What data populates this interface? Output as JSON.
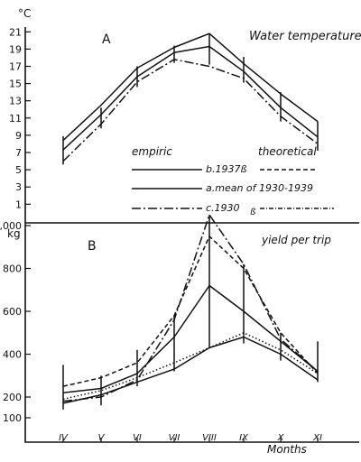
{
  "chart_data": [
    {
      "type": "line",
      "panel_label": "A",
      "title": "Water temperature",
      "unit_label": "°C",
      "y_ticks": [
        1,
        3,
        5,
        7,
        9,
        11,
        13,
        15,
        17,
        19,
        21
      ],
      "ylim": [
        0,
        22
      ],
      "grid": false,
      "legend": {
        "placement": "bottom-right",
        "header_left": "empiric",
        "header_right": "theoretical",
        "entries": [
          {
            "label": "b.1937ß",
            "line": "solid"
          },
          {
            "label": "a.mean of 1930-1939",
            "line": "solid"
          },
          {
            "label": "c.1930",
            "suffix": "ß",
            "line": "dash-dot"
          }
        ]
      },
      "series": [
        {
          "style": "solid",
          "values": [
            7.3,
            11.4,
            15.8,
            18.6,
            19.3,
            16.4,
            12.2,
            8.8
          ]
        },
        {
          "style": "solid",
          "values": [
            8.4,
            12.5,
            16.8,
            19.2,
            20.8,
            17.3,
            13.8,
            10.6
          ]
        },
        {
          "style": "dash-dot",
          "values": [
            6.0,
            10.3,
            15.2,
            17.8,
            17.0,
            15.6,
            11.2,
            8.0
          ]
        }
      ],
      "range_bars": [
        [
          5.6,
          8.9
        ],
        [
          9.8,
          12.2
        ],
        [
          14.6,
          17.0
        ],
        [
          17.4,
          19.4
        ],
        [
          17.2,
          20.8
        ],
        [
          15.1,
          18.1
        ],
        [
          10.6,
          14.0
        ],
        [
          7.2,
          10.6
        ]
      ]
    },
    {
      "type": "line",
      "panel_label": "B",
      "title": "yield per trip",
      "unit_label": "kg",
      "y_ticks": [
        100,
        200,
        400,
        600,
        800,
        1000
      ],
      "y_tick_labels": [
        "100",
        "200",
        "400",
        "600",
        "800",
        "1,000"
      ],
      "ylim": [
        50,
        1060
      ],
      "x_categories": [
        "IV",
        "V",
        "VI",
        "VII",
        "VIII",
        "IX",
        "X",
        "XI"
      ],
      "xlabel": "Months",
      "grid": false,
      "series": [
        {
          "style": "solid",
          "values": [
            220,
            240,
            310,
            480,
            720,
            600,
            460,
            320
          ]
        },
        {
          "style": "dash-dot",
          "values": [
            180,
            200,
            280,
            560,
            1050,
            820,
            470,
            320
          ]
        },
        {
          "style": "dashed",
          "values": [
            250,
            290,
            360,
            580,
            950,
            800,
            500,
            310
          ]
        },
        {
          "style": "dotted",
          "values": [
            190,
            230,
            290,
            360,
            430,
            500,
            420,
            310
          ]
        },
        {
          "style": "solid-thin",
          "values": [
            170,
            210,
            270,
            330,
            430,
            480,
            400,
            280
          ]
        }
      ],
      "range_bars": [
        [
          140,
          350
        ],
        [
          160,
          300
        ],
        [
          250,
          420
        ],
        [
          320,
          580
        ],
        [
          430,
          1050
        ],
        [
          450,
          820
        ],
        [
          370,
          500
        ],
        [
          270,
          460
        ]
      ]
    }
  ]
}
